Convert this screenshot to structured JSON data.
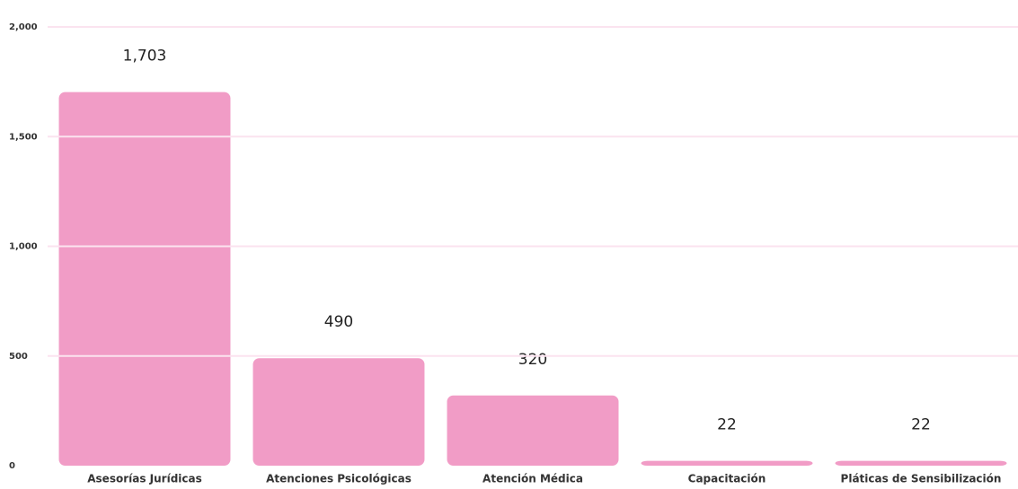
{
  "chart_data": {
    "type": "bar",
    "categories": [
      "Asesorías Jurídicas",
      "Atenciones Psicológicas",
      "Atención Médica",
      "Capacitación",
      "Pláticas de Sensibilización"
    ],
    "values": [
      1703,
      490,
      320,
      22,
      22
    ],
    "value_labels": [
      "1,703",
      "490",
      "320",
      "22",
      "22"
    ],
    "color": "#f19cc6",
    "ylim": [
      0,
      2000
    ],
    "yticks": [
      0,
      500,
      {
        "value": 1000,
        "label": "1,000"
      },
      {
        "value": 1500,
        "label": "1,500"
      },
      {
        "value": 2000,
        "label": "2,000"
      }
    ],
    "grid": true
  }
}
